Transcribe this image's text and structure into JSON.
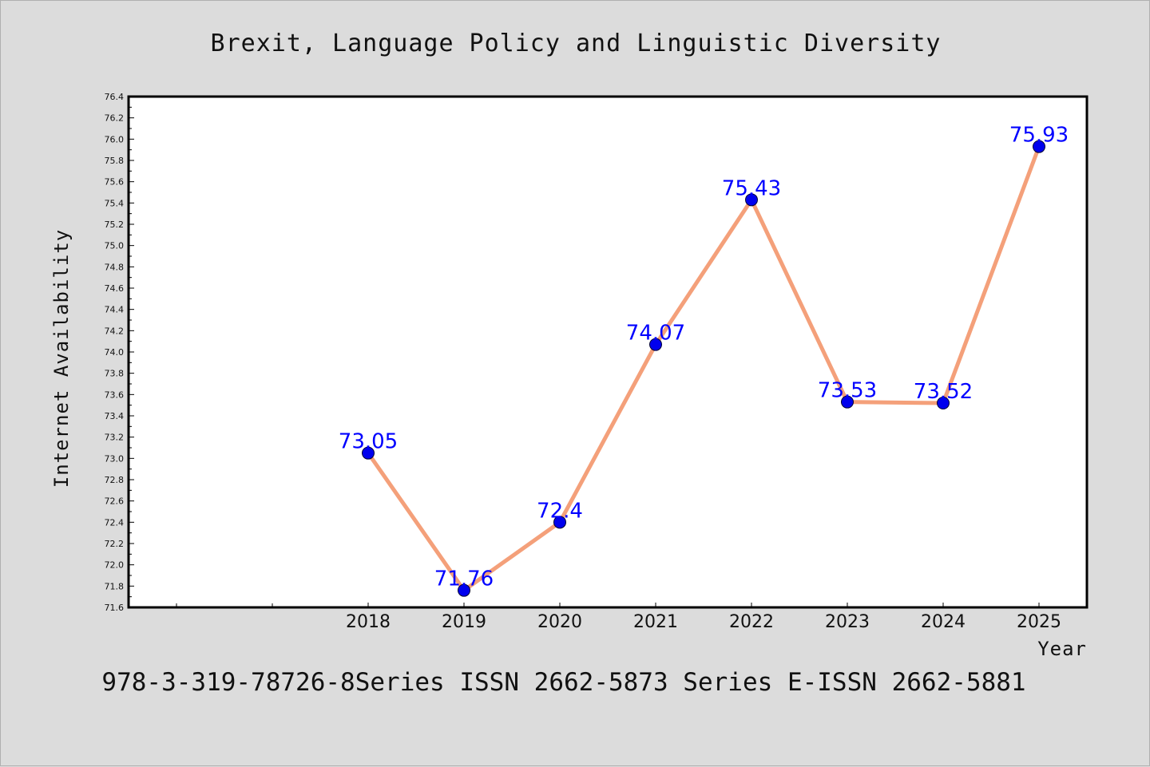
{
  "chart_data": {
    "type": "line",
    "title": "Brexit, Language Policy and Linguistic Diversity",
    "xlabel": "Year",
    "ylabel": "Internet Availability",
    "categories": [
      "2018",
      "2019",
      "2020",
      "2021",
      "2022",
      "2023",
      "2024",
      "2025"
    ],
    "series": [
      {
        "values": [
          73.05,
          71.76,
          72.4,
          74.07,
          75.43,
          73.53,
          73.52,
          75.93
        ],
        "labels": [
          "73.05",
          "71.76",
          "72.4",
          "74.07",
          "75.43",
          "73.53",
          "73.52",
          "75.93"
        ]
      }
    ],
    "ylim": [
      71.6,
      76.4
    ],
    "yticks": [
      "71.6",
      "71.8",
      "72.0",
      "72.2",
      "72.4",
      "72.6",
      "72.8",
      "73.0",
      "73.2",
      "73.4",
      "73.6",
      "73.8",
      "74.0",
      "74.2",
      "74.4",
      "74.6",
      "74.8",
      "75.0",
      "75.2",
      "75.4",
      "75.6",
      "75.8",
      "76.0",
      "76.2",
      "76.4"
    ],
    "grid": false,
    "line_color": "#f4a07a",
    "marker_color": "#0000ee",
    "label_color": "#0000ff",
    "footer": "978-3-319-78726-8Series ISSN 2662-5873 Series E-ISSN 2662-5881"
  }
}
